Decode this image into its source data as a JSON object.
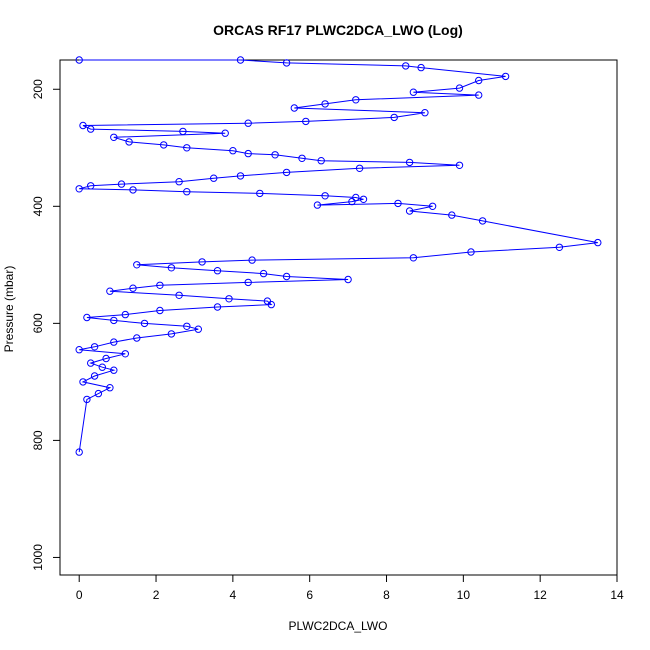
{
  "chart_data": {
    "type": "line",
    "title": "ORCAS RF17 PLWC2DCA_LWO (Log)",
    "xlabel": "PLWC2DCA_LWO",
    "ylabel": "Pressure (mbar)",
    "xlim": [
      -0.5,
      14
    ],
    "ylim": [
      1030,
      150
    ],
    "y_reversed": true,
    "x_ticks": [
      0,
      2,
      4,
      6,
      8,
      10,
      12,
      14
    ],
    "y_ticks": [
      200,
      400,
      600,
      800,
      1000
    ],
    "grid": false,
    "legend": "none",
    "series_color": "#0000ff",
    "marker": "open-circle",
    "series": [
      {
        "x": [
          0,
          4.2,
          5.4,
          8.5,
          8.9,
          11.1,
          10.4,
          9.9,
          8.7,
          10.4,
          7.2,
          6.4,
          5.6,
          9.0,
          8.2,
          5.9,
          4.4,
          0.1,
          0.3,
          2.7,
          3.8,
          0.9,
          1.3,
          2.2,
          2.8,
          4.0,
          4.4,
          5.1,
          5.8,
          6.3,
          8.6,
          9.9,
          7.3,
          5.4,
          4.2,
          3.5,
          2.6,
          1.1,
          0.3,
          0,
          1.4,
          2.8,
          4.7,
          6.4,
          7.2,
          7.4,
          7.1,
          6.2,
          8.3,
          9.2,
          8.6,
          9.7,
          10.5,
          13.5,
          12.5,
          10.2,
          8.7,
          4.5,
          3.2,
          1.5,
          2.4,
          3.6,
          4.8,
          5.4,
          7.0,
          4.4,
          2.1,
          1.4,
          0.8,
          2.6,
          3.9,
          4.9,
          5.0,
          3.6,
          2.1,
          1.2,
          0.2,
          0.9,
          1.7,
          2.8,
          3.1,
          2.4,
          1.5,
          0.9,
          0.4,
          0,
          1.2,
          0.7,
          0.3,
          0.6,
          0.9,
          0.4,
          0.1,
          0.8,
          0.5,
          0.2,
          0
        ],
        "y": [
          150,
          150,
          155,
          160,
          163,
          178,
          185,
          198,
          205,
          210,
          218,
          225,
          232,
          240,
          248,
          255,
          258,
          262,
          268,
          272,
          275,
          282,
          290,
          295,
          300,
          305,
          310,
          312,
          318,
          322,
          325,
          330,
          335,
          342,
          348,
          352,
          358,
          362,
          365,
          370,
          372,
          375,
          378,
          382,
          385,
          388,
          392,
          398,
          395,
          400,
          408,
          415,
          425,
          462,
          470,
          478,
          488,
          492,
          495,
          500,
          505,
          510,
          515,
          520,
          525,
          530,
          535,
          540,
          545,
          552,
          558,
          562,
          568,
          572,
          578,
          585,
          590,
          595,
          600,
          605,
          610,
          618,
          625,
          632,
          640,
          645,
          652,
          660,
          668,
          675,
          680,
          690,
          700,
          710,
          720,
          730,
          820
        ]
      }
    ]
  }
}
